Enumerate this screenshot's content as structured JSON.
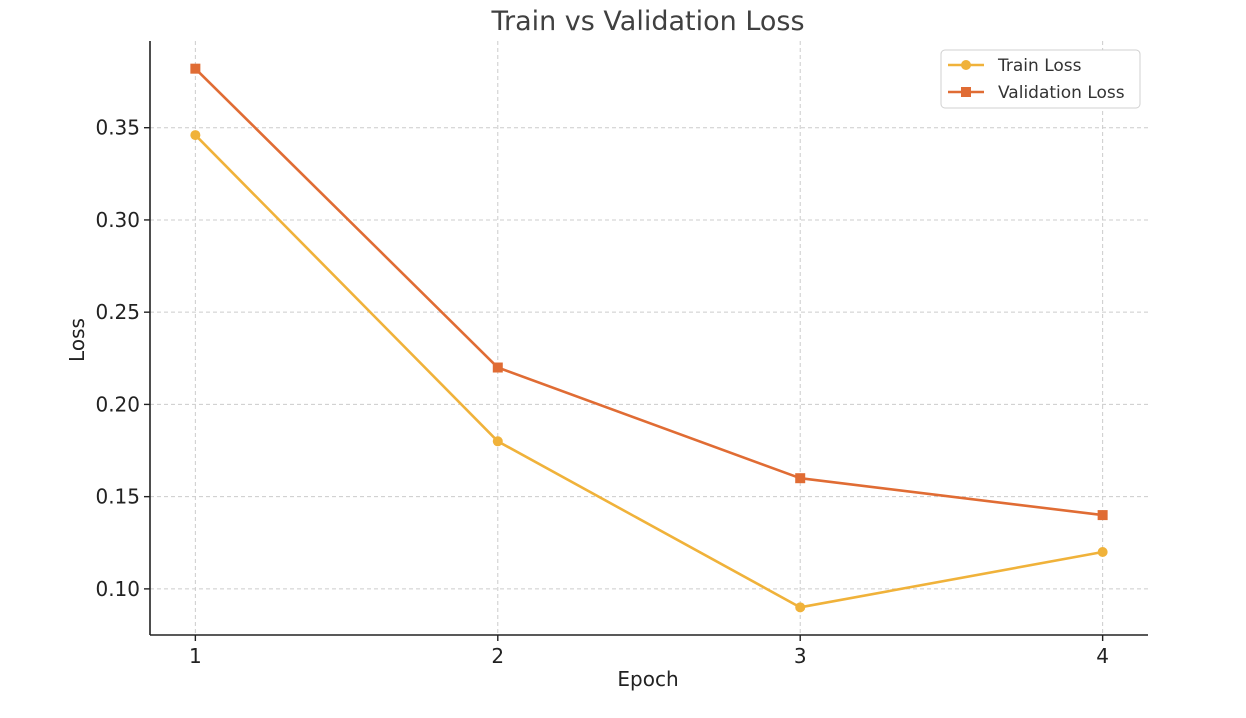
{
  "chart_data": {
    "type": "line",
    "title": "Train vs Validation Loss",
    "xlabel": "Epoch",
    "ylabel": "Loss",
    "x": [
      1,
      2,
      3,
      4
    ],
    "x_tick_labels": [
      "1",
      "2",
      "3",
      "4"
    ],
    "y_ticks": [
      0.1,
      0.15,
      0.2,
      0.25,
      0.3,
      0.35
    ],
    "y_tick_labels": [
      "0.10",
      "0.15",
      "0.20",
      "0.25",
      "0.30",
      "0.35"
    ],
    "xlim": [
      0.85,
      4.15
    ],
    "ylim": [
      0.075,
      0.397
    ],
    "grid": true,
    "legend_position": "top-right",
    "series": [
      {
        "name": "Train Loss",
        "values": [
          0.346,
          0.18,
          0.09,
          0.12
        ],
        "color": "#f0b23a",
        "marker": "circle"
      },
      {
        "name": "Validation Loss",
        "values": [
          0.382,
          0.22,
          0.16,
          0.14
        ],
        "color": "#e06c34",
        "marker": "square"
      }
    ]
  }
}
